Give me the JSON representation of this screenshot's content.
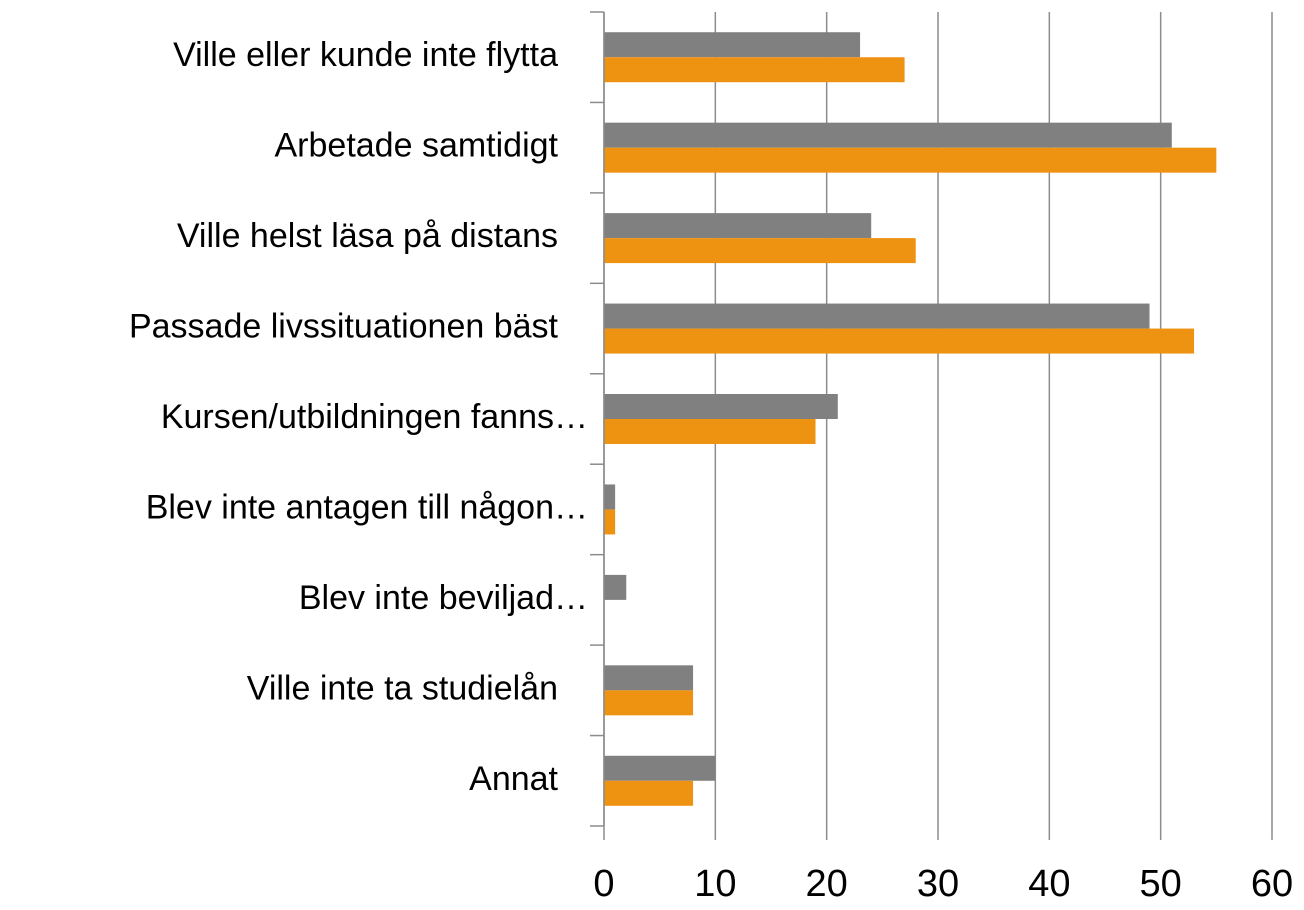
{
  "chart_data": {
    "type": "barh",
    "categories": [
      "Ville eller kunde inte flytta",
      "Arbetade samtidigt",
      "Ville helst läsa på distans",
      "Passade livssituationen bäst",
      "Kursen/utbildningen fanns…",
      "Blev inte antagen till någon…",
      "Blev inte beviljad…",
      "Ville inte ta studielån",
      "Annat"
    ],
    "series": [
      {
        "color": "#808080",
        "values": [
          23,
          51,
          24,
          49,
          21,
          1,
          2,
          8,
          10
        ]
      },
      {
        "color": "#ee9212",
        "values": [
          27,
          55,
          28,
          53,
          19,
          1,
          0,
          8,
          8
        ]
      }
    ],
    "xlim": [
      0,
      60
    ],
    "xticks": [
      0,
      10,
      20,
      30,
      40,
      50,
      60
    ],
    "grid": true
  }
}
